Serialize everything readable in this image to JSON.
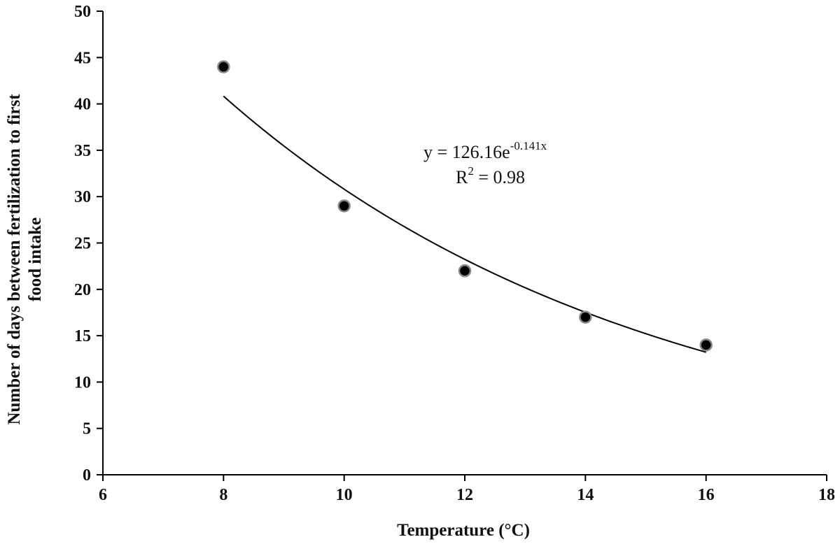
{
  "chart_data": {
    "type": "scatter",
    "xlabel": "Temperature (°C)",
    "ylabel_lines": [
      "Number of days between fertilization to first",
      "food intake"
    ],
    "xlim": [
      6,
      18
    ],
    "ylim": [
      0,
      50
    ],
    "xticks": [
      6,
      8,
      10,
      12,
      14,
      16,
      18
    ],
    "yticks": [
      0,
      5,
      10,
      15,
      20,
      25,
      30,
      35,
      40,
      45,
      50
    ],
    "grid": false,
    "legend": "none",
    "points": [
      {
        "x": 8,
        "y": 44
      },
      {
        "x": 10,
        "y": 29
      },
      {
        "x": 12,
        "y": 22
      },
      {
        "x": 14,
        "y": 17
      },
      {
        "x": 16,
        "y": 14
      }
    ],
    "trendline": {
      "type": "exponential",
      "a": 126.16,
      "b": -0.141,
      "x_from": 8,
      "x_to": 16
    },
    "annotation": {
      "equation_main": "y = 126.16e",
      "equation_exponent": "-0.141x",
      "r2_prefix": "R",
      "r2_sup": "2",
      "r2_suffix": " = 0.98"
    },
    "colors": {
      "marker_fill": "#000000",
      "marker_stroke": "#888888",
      "line": "#000000",
      "axis": "#000000"
    }
  }
}
